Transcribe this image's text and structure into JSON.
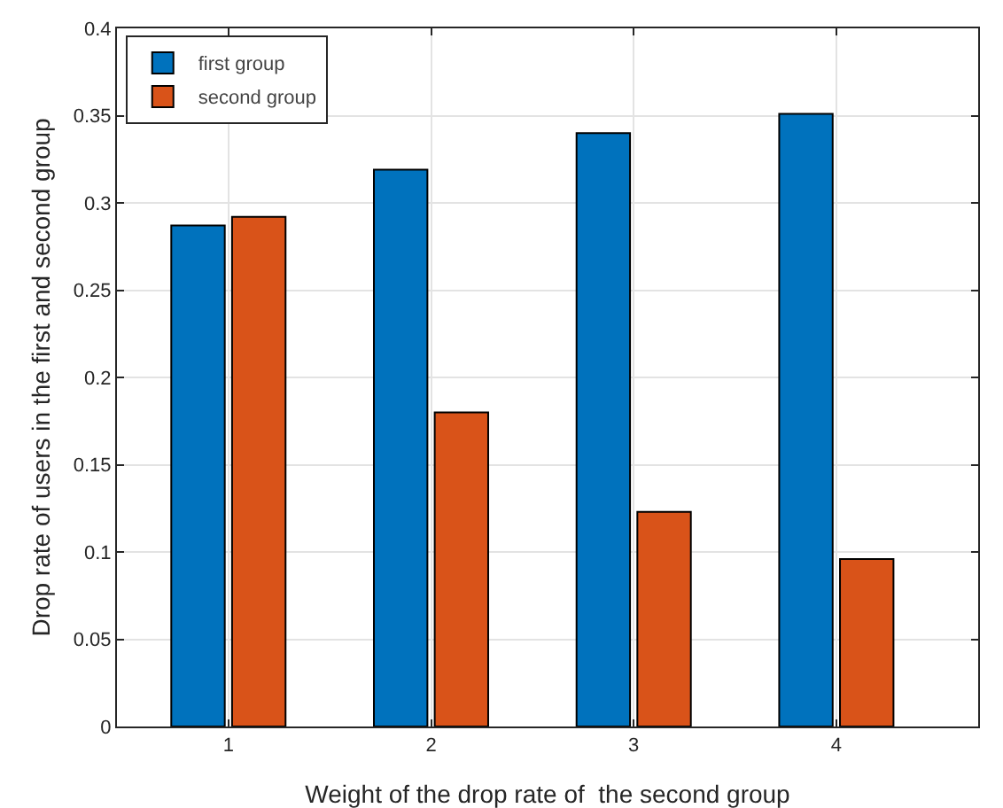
{
  "chart_data": {
    "type": "bar",
    "xlabel": "Weight of the drop rate of  the second group",
    "ylabel": "Drop rate of users in the first and second group",
    "x": [
      1,
      2,
      3,
      4
    ],
    "xlim": [
      0.45,
      4.7
    ],
    "xticks": [
      1,
      2,
      3,
      4
    ],
    "ylim": [
      0,
      0.4
    ],
    "yticks": [
      0,
      0.05,
      0.1,
      0.15,
      0.2,
      0.25,
      0.3,
      0.35,
      0.4
    ],
    "series": [
      {
        "name": "first group",
        "color": "#0072bd",
        "values": [
          0.287,
          0.319,
          0.34,
          0.351
        ]
      },
      {
        "name": "second group",
        "color": "#d95319",
        "values": [
          0.292,
          0.18,
          0.123,
          0.096
        ]
      }
    ],
    "grid": true,
    "legend": "top left"
  }
}
